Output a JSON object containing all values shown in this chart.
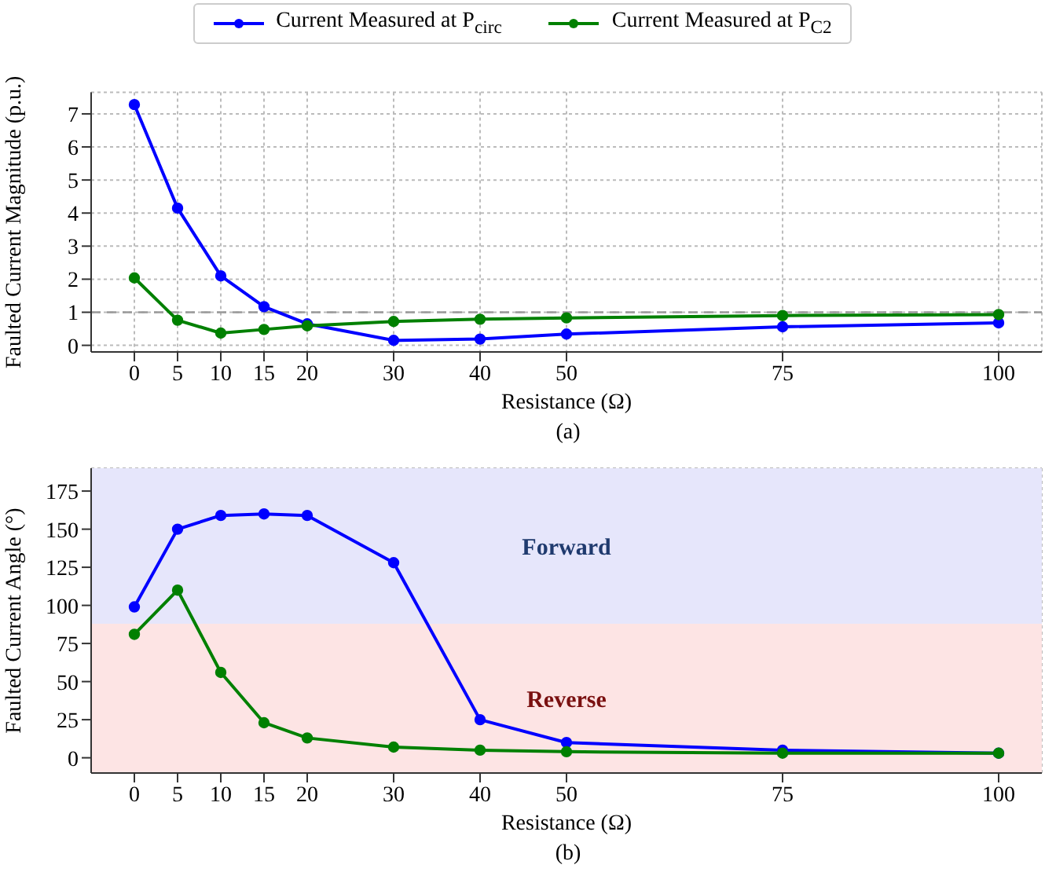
{
  "chart_data": [
    {
      "type": "line",
      "ylabel": "Faulted Current Magnitude (p.u.)",
      "xlabel": "Resistance (Ω)",
      "annotations": [
        "(a)"
      ],
      "x": [
        0,
        5,
        10,
        15,
        20,
        30,
        40,
        50,
        75,
        100
      ],
      "series": [
        {
          "name": "Current Measured at P$_{circ}$",
          "color": "#0000ff",
          "values": [
            7.28,
            4.15,
            2.1,
            1.17,
            0.65,
            0.15,
            0.19,
            0.34,
            0.56,
            0.68
          ]
        },
        {
          "name": "Current Measured at P$_{C2}$",
          "color": "#008000",
          "values": [
            2.04,
            0.76,
            0.37,
            0.48,
            0.59,
            0.72,
            0.79,
            0.83,
            0.9,
            0.93
          ]
        }
      ],
      "xlim": [
        -5,
        105
      ],
      "xticks": [
        0,
        5,
        10,
        15,
        20,
        30,
        40,
        50,
        75,
        100
      ],
      "ylim": [
        -0.2,
        7.65
      ],
      "yticks": [
        0,
        1,
        2,
        3,
        4,
        5,
        6,
        7
      ],
      "ref_lines": [
        {
          "axis": "y",
          "value": 1,
          "color": "#999999",
          "line_style": "dashed"
        }
      ],
      "grid": true,
      "legend": "top",
      "marker": "circle"
    },
    {
      "type": "line",
      "ylabel": "Faulted Current Angle (°)",
      "xlabel": "Resistance (Ω)",
      "annotations": [
        "(b)"
      ],
      "x": [
        0,
        5,
        10,
        15,
        20,
        30,
        40,
        50,
        75,
        100
      ],
      "series": [
        {
          "color": "#0000ff",
          "values": [
            99,
            150,
            159,
            160,
            159,
            128,
            25,
            10,
            5,
            3
          ]
        },
        {
          "color": "#008000",
          "values": [
            81,
            110,
            56,
            23,
            13,
            7,
            5,
            4,
            3,
            3
          ]
        }
      ],
      "xlim": [
        -5,
        105
      ],
      "xticks": [
        0,
        5,
        10,
        15,
        20,
        30,
        40,
        50,
        75,
        100
      ],
      "ylim": [
        -10,
        190
      ],
      "yticks": [
        0,
        25,
        50,
        75,
        100,
        125,
        150,
        175
      ],
      "bands": [
        {
          "axis": "y",
          "from": 88,
          "to": 190,
          "label": "Forward",
          "color": "#e6e6fb"
        },
        {
          "axis": "y",
          "from": -10,
          "to": 88,
          "label": "Reverse",
          "color": "#fde4e4"
        }
      ],
      "grid": true,
      "marker": "circle"
    }
  ]
}
